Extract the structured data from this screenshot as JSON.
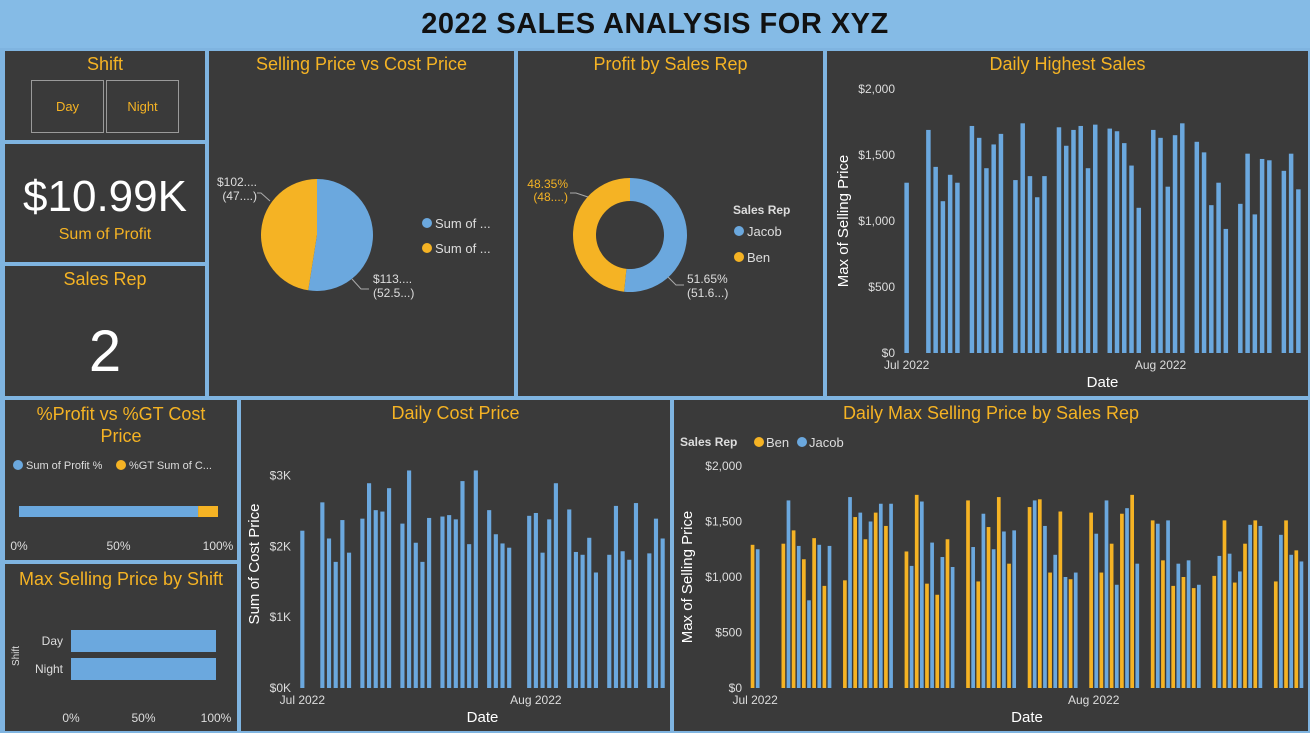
{
  "header": {
    "title": "2022 SALES ANALYSIS FOR XYZ"
  },
  "colors": {
    "blue": "#6ba8de",
    "yellow": "#f5b324",
    "panel": "#3a3a3a"
  },
  "shift_slicer": {
    "title": "Shift",
    "options": [
      "Day",
      "Night"
    ]
  },
  "profit_card": {
    "value": "$10.99K",
    "label": "Sum of Profit"
  },
  "salesrep_card": {
    "title": "Sales Rep",
    "value": "2"
  },
  "chart_data": [
    {
      "id": "pie_price",
      "type": "pie",
      "title": "Selling Price vs Cost Price",
      "slices": [
        {
          "name": "Sum of ...",
          "label1": "$113....",
          "label2": "(52.5...)",
          "value": 52.5,
          "color": "#6ba8de"
        },
        {
          "name": "Sum of ...",
          "label1": "$102....",
          "label2": "(47....)",
          "value": 47.5,
          "color": "#f5b324"
        }
      ]
    },
    {
      "id": "donut_rep",
      "type": "pie",
      "title": "Profit by Sales Rep",
      "legend_title": "Sales Rep",
      "slices": [
        {
          "name": "Jacob",
          "label1": "51.65%",
          "label2": "(51.6...)",
          "value": 51.65,
          "color": "#6ba8de"
        },
        {
          "name": "Ben",
          "label1": "48.35%",
          "label2": "(48....)",
          "value": 48.35,
          "color": "#f5b324"
        }
      ]
    },
    {
      "id": "daily_highest",
      "type": "bar",
      "title": "Daily Highest Sales",
      "xlabel": "Date",
      "ylabel": "Max of Selling Price",
      "ylim": [
        0,
        2000
      ],
      "yticks": [
        "$0",
        "$500",
        "$1,000",
        "$1,500",
        "$2,000"
      ],
      "xticks": [
        "Jul 2022",
        "Aug 2022"
      ],
      "xtick_index": [
        0,
        35
      ],
      "values": [
        1290,
        null,
        null,
        1690,
        1410,
        1150,
        1350,
        1290,
        null,
        1720,
        1630,
        1400,
        1580,
        1660,
        null,
        1310,
        1740,
        1340,
        1180,
        1340,
        null,
        1710,
        1570,
        1690,
        1720,
        1400,
        1730,
        null,
        1700,
        1680,
        1590,
        1420,
        1100,
        null,
        1690,
        1630,
        1260,
        1650,
        1740,
        null,
        1600,
        1520,
        1120,
        1290,
        940,
        null,
        1130,
        1510,
        1050,
        1470,
        1460,
        null,
        1380,
        1510,
        1240
      ]
    },
    {
      "id": "profit_gt",
      "type": "bar",
      "title": "%Profit vs %GT Cost Price",
      "legend": [
        "Sum of Profit %",
        "%GT Sum of C..."
      ],
      "xticks": [
        "0%",
        "50%",
        "100%"
      ],
      "values": [
        90,
        10
      ]
    },
    {
      "id": "shift_bar",
      "type": "bar",
      "title": "Max Selling Price by Shift",
      "ylabel": "Shift",
      "categories": [
        "Day",
        "Night"
      ],
      "xticks": [
        "0%",
        "50%",
        "100%"
      ],
      "values": [
        100,
        100
      ]
    },
    {
      "id": "daily_cost",
      "type": "bar",
      "title": "Daily Cost Price",
      "xlabel": "Date",
      "ylabel": "Sum of Cost Price",
      "ylim": [
        0,
        3500
      ],
      "ytick_values": [
        0,
        1000,
        2000,
        3000
      ],
      "yticks": [
        "$0K",
        "$1K",
        "$2K",
        "$3K"
      ],
      "xticks": [
        "Jul 2022",
        "Aug 2022"
      ],
      "xtick_index": [
        0,
        35
      ],
      "values": [
        2220,
        null,
        null,
        2620,
        2110,
        1780,
        2370,
        1910,
        null,
        2390,
        2890,
        2510,
        2490,
        2820,
        null,
        2320,
        3070,
        2050,
        1780,
        2400,
        null,
        2420,
        2440,
        2380,
        2920,
        2030,
        3070,
        null,
        2510,
        2170,
        2040,
        1980,
        null,
        null,
        2430,
        2470,
        1910,
        2380,
        2890,
        null,
        2520,
        1920,
        1880,
        2120,
        1630,
        null,
        1880,
        2570,
        1930,
        1810,
        2610,
        null,
        1900,
        2390,
        2110
      ]
    },
    {
      "id": "daily_rep",
      "type": "bar",
      "title": "Daily Max Selling Price by Sales Rep",
      "legend_title": "Sales Rep",
      "xlabel": "Date",
      "ylabel": "Max of Selling Price",
      "ylim": [
        0,
        2000
      ],
      "yticks": [
        "$0",
        "$500",
        "$1,000",
        "$1,500",
        "$2,000"
      ],
      "xticks": [
        "Jul 2022",
        "Aug 2022"
      ],
      "xtick_index": [
        0,
        33
      ],
      "series": [
        {
          "name": "Ben",
          "color": "#f5b324",
          "values": [
            1290,
            null,
            null,
            1300,
            1420,
            1160,
            1350,
            920,
            null,
            970,
            1540,
            1340,
            1580,
            1460,
            null,
            1230,
            1740,
            940,
            840,
            1340,
            null,
            1690,
            960,
            1450,
            1720,
            1120,
            null,
            1630,
            1700,
            1040,
            1590,
            980,
            null,
            1580,
            1040,
            1300,
            1570,
            1740,
            null,
            1510,
            1150,
            920,
            1000,
            900,
            null,
            1010,
            1510,
            950,
            1300,
            1510,
            null,
            960,
            1510,
            1240
          ]
        },
        {
          "name": "Jacob",
          "color": "#6ba8de",
          "values": [
            1250,
            null,
            null,
            1690,
            1280,
            790,
            1290,
            1280,
            null,
            1720,
            1580,
            1500,
            1660,
            1660,
            null,
            1100,
            1680,
            1310,
            1180,
            1090,
            null,
            1270,
            1570,
            1250,
            1410,
            1420,
            null,
            1690,
            1460,
            1200,
            1000,
            1040,
            null,
            1390,
            1690,
            930,
            1620,
            1120,
            null,
            1480,
            1510,
            1120,
            1150,
            930,
            null,
            1190,
            1210,
            1050,
            1470,
            1460,
            null,
            1380,
            1200,
            1140
          ]
        }
      ]
    }
  ]
}
